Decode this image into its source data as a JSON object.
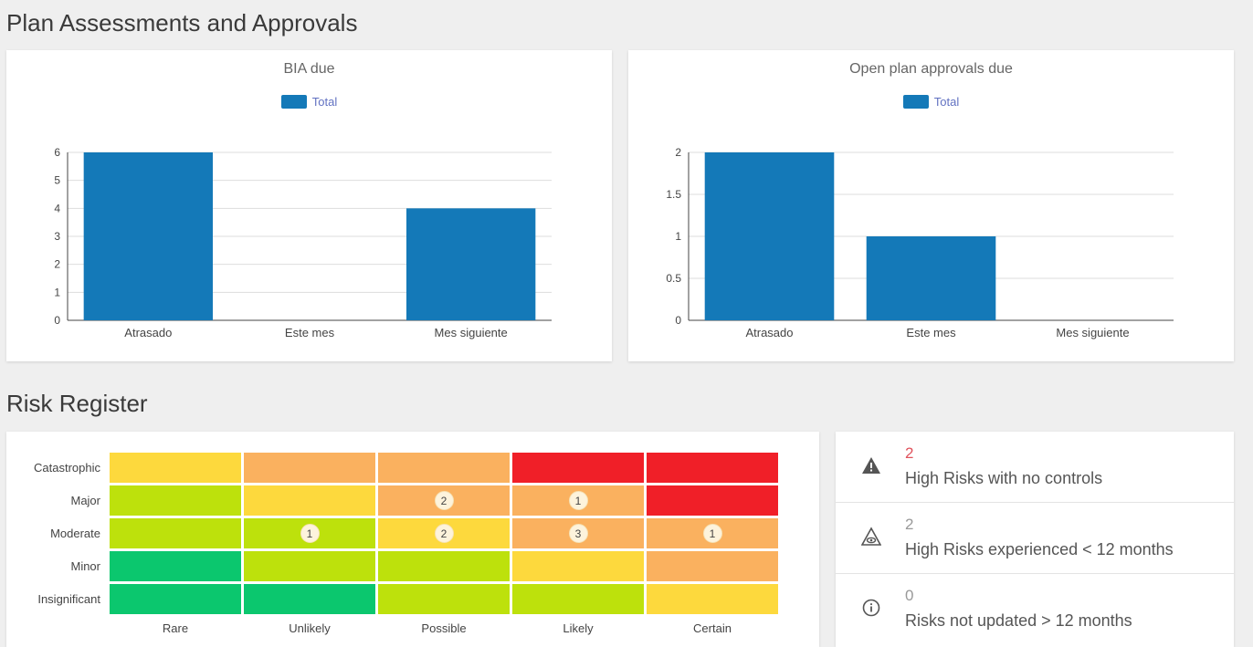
{
  "sections": {
    "plan_title": "Plan Assessments and Approvals",
    "risk_title": "Risk Register"
  },
  "colors": {
    "bar": "#1479b8",
    "legend_text": "#6272c2",
    "high_value": "#e0525c",
    "muted_value": "#999999",
    "green": "#0bc76e",
    "lime": "#bde10c",
    "yellow": "#fdd93d",
    "orange": "#fab15f",
    "red": "#f01f28"
  },
  "chart_data": [
    {
      "type": "bar",
      "title": "BIA due",
      "categories": [
        "Atrasado",
        "Este mes",
        "Mes siguiente"
      ],
      "series": [
        {
          "name": "Total",
          "values": [
            6,
            0,
            4
          ]
        }
      ],
      "ylim": [
        0,
        6
      ],
      "yticks": [
        "0",
        "1",
        "2",
        "3",
        "4",
        "5",
        "6"
      ],
      "grid": true,
      "legend": "top-center"
    },
    {
      "type": "bar",
      "title": "Open plan approvals due",
      "categories": [
        "Atrasado",
        "Este mes",
        "Mes siguiente"
      ],
      "series": [
        {
          "name": "Total",
          "values": [
            2,
            1,
            0
          ]
        }
      ],
      "ylim": [
        0,
        2
      ],
      "yticks": [
        "0",
        "0.5",
        "1",
        "1.5",
        "2"
      ],
      "grid": true,
      "legend": "top-center"
    }
  ],
  "risk_matrix": {
    "rows": [
      "Catastrophic",
      "Major",
      "Moderate",
      "Minor",
      "Insignificant"
    ],
    "cols": [
      "Rare",
      "Unlikely",
      "Possible",
      "Likely",
      "Certain"
    ],
    "colors": [
      [
        "yellow",
        "orange",
        "orange",
        "red",
        "red"
      ],
      [
        "lime",
        "yellow",
        "orange",
        "orange",
        "red"
      ],
      [
        "lime",
        "lime",
        "yellow",
        "orange",
        "orange"
      ],
      [
        "green",
        "lime",
        "lime",
        "yellow",
        "orange"
      ],
      [
        "green",
        "green",
        "lime",
        "lime",
        "yellow"
      ]
    ],
    "counts": [
      [
        "",
        "",
        "",
        "",
        ""
      ],
      [
        "",
        "",
        "2",
        "1",
        ""
      ],
      [
        "",
        "1",
        "2",
        "3",
        "1"
      ],
      [
        "",
        "",
        "",
        "",
        ""
      ],
      [
        "",
        "",
        "",
        "",
        ""
      ]
    ]
  },
  "risk_stats": [
    {
      "icon": "warning-icon",
      "value": "2",
      "label": "High Risks with no controls",
      "value_color": "#e0525c"
    },
    {
      "icon": "alert-eye-icon",
      "value": "2",
      "label": "High Risks experienced < 12 months",
      "value_color": "#999999"
    },
    {
      "icon": "info-icon",
      "value": "0",
      "label": "Risks not updated > 12 months",
      "value_color": "#999999"
    }
  ]
}
